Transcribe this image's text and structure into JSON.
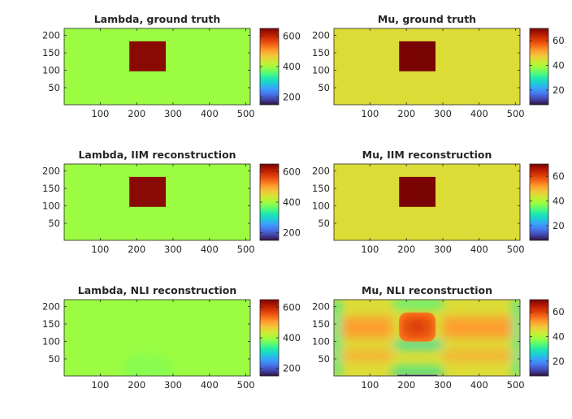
{
  "chart_data": [
    {
      "type": "heatmap",
      "title": "Lambda, ground truth",
      "xlim": [
        1,
        512
      ],
      "ylim": [
        1,
        220
      ],
      "xticks": [
        100,
        200,
        300,
        400,
        500
      ],
      "yticks": [
        50,
        100,
        150,
        200
      ],
      "colorbar": {
        "range": [
          150,
          650
        ],
        "ticks": [
          200,
          400,
          600
        ]
      },
      "background_value": 395,
      "inclusion": {
        "x": [
          180,
          280
        ],
        "y": [
          97,
          183
        ],
        "value": 640
      }
    },
    {
      "type": "heatmap",
      "title": "Mu, ground truth",
      "xlim": [
        1,
        512
      ],
      "ylim": [
        1,
        220
      ],
      "xticks": [
        100,
        200,
        300,
        400,
        500
      ],
      "yticks": [
        50,
        100,
        150,
        200
      ],
      "colorbar": {
        "range": [
          8,
          70
        ],
        "ticks": [
          20,
          40,
          60
        ]
      },
      "background_value": 45,
      "inclusion": {
        "x": [
          180,
          280
        ],
        "y": [
          97,
          183
        ],
        "value": 70
      }
    },
    {
      "type": "heatmap",
      "title": "Lambda, IIM reconstruction",
      "xlim": [
        1,
        512
      ],
      "ylim": [
        1,
        220
      ],
      "xticks": [
        100,
        200,
        300,
        400,
        500
      ],
      "yticks": [
        50,
        100,
        150,
        200
      ],
      "colorbar": {
        "range": [
          150,
          650
        ],
        "ticks": [
          200,
          400,
          600
        ]
      },
      "background_value": 395,
      "inclusion": {
        "x": [
          180,
          280
        ],
        "y": [
          97,
          183
        ],
        "value": 640
      }
    },
    {
      "type": "heatmap",
      "title": "Mu, IIM reconstruction",
      "xlim": [
        1,
        512
      ],
      "ylim": [
        1,
        220
      ],
      "xticks": [
        100,
        200,
        300,
        400,
        500
      ],
      "yticks": [
        50,
        100,
        150,
        200
      ],
      "colorbar": {
        "range": [
          8,
          70
        ],
        "ticks": [
          20,
          40,
          60
        ]
      },
      "background_value": 45,
      "inclusion": {
        "x": [
          180,
          280
        ],
        "y": [
          97,
          183
        ],
        "value": 70
      }
    },
    {
      "type": "heatmap",
      "title": "Lambda, NLI reconstruction",
      "xlim": [
        1,
        512
      ],
      "ylim": [
        1,
        220
      ],
      "xticks": [
        100,
        200,
        300,
        400,
        500
      ],
      "yticks": [
        50,
        100,
        150,
        200
      ],
      "colorbar": {
        "range": [
          150,
          650
        ],
        "ticks": [
          200,
          400,
          600
        ]
      },
      "background_value": 395,
      "blobs": [
        {
          "x": 230,
          "y": 20,
          "rx": 70,
          "ry": 45,
          "value": 385
        }
      ]
    },
    {
      "type": "heatmap",
      "title": "Mu, NLI reconstruction",
      "xlim": [
        1,
        512
      ],
      "ylim": [
        1,
        220
      ],
      "xticks": [
        100,
        200,
        300,
        400,
        500
      ],
      "yticks": [
        50,
        100,
        150,
        200
      ],
      "colorbar": {
        "range": [
          8,
          70
        ],
        "ticks": [
          20,
          40,
          60
        ]
      },
      "background_value": 45,
      "bands": [
        {
          "x": [
            160,
            300
          ],
          "y": [
            1,
            8
          ],
          "value": 12
        },
        {
          "x": [
            160,
            300
          ],
          "y": [
            8,
            30
          ],
          "value": 33
        },
        {
          "x": [
            165,
            300
          ],
          "y": [
            80,
            100
          ],
          "value": 28
        },
        {
          "x": [
            165,
            300
          ],
          "y": [
            195,
            220
          ],
          "value": 33
        }
      ],
      "inclusion": {
        "x": [
          180,
          280
        ],
        "y": [
          100,
          183
        ],
        "value": 62
      }
    }
  ],
  "colormap": [
    "#30123b",
    "#4145ab",
    "#4675ed",
    "#39a2fc",
    "#1bcfd4",
    "#24eca6",
    "#61fc6c",
    "#a4fc3b",
    "#d1e834",
    "#f3c63a",
    "#fe9b2d",
    "#f36315",
    "#d93806",
    "#b11901",
    "#7a0403"
  ]
}
